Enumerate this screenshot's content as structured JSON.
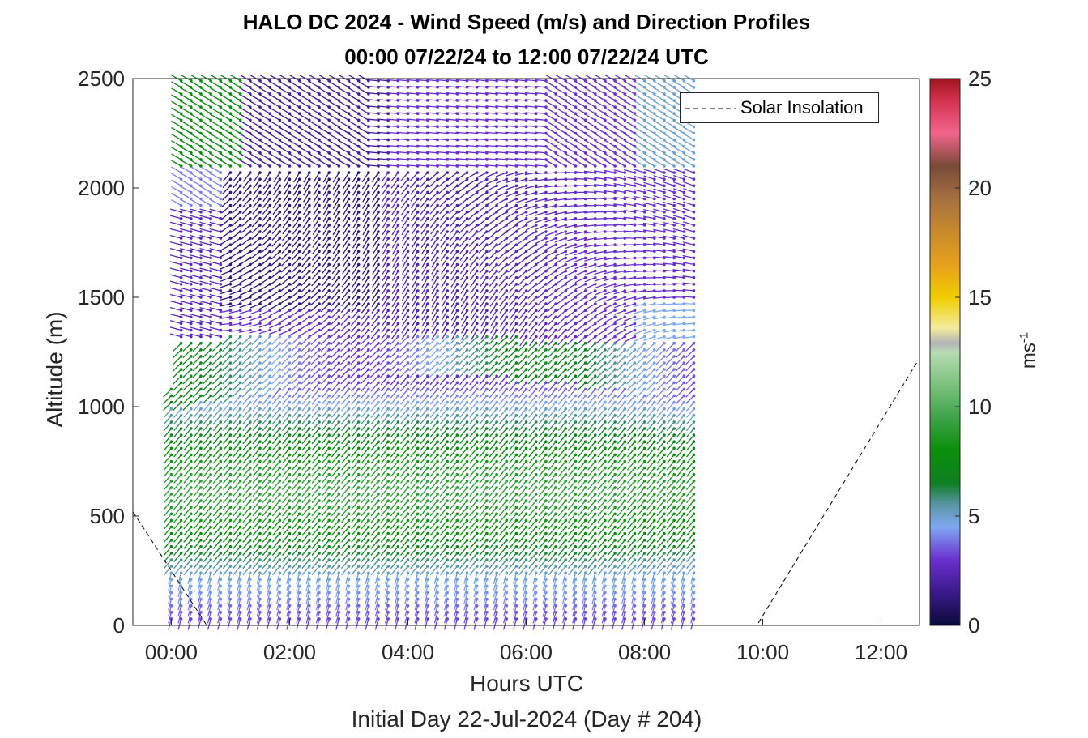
{
  "title_line1": "HALO DC 2024 - Wind Speed (m/s) and Direction Profiles",
  "title_line2": "00:00 07/22/24 to 12:00 07/22/24  UTC",
  "chart_data": {
    "type": "quiver",
    "xlabel": "Hours UTC",
    "xlabel2": "Initial Day 22-Jul-2024 (Day # 204)",
    "ylabel": "Altitude (m)",
    "xlim": [
      -0.65,
      12.65
    ],
    "ylim": [
      0,
      2500
    ],
    "xticks": [
      {
        "value": 0,
        "label": "00:00"
      },
      {
        "value": 2,
        "label": "02:00"
      },
      {
        "value": 4,
        "label": "04:00"
      },
      {
        "value": 6,
        "label": "06:00"
      },
      {
        "value": 8,
        "label": "08:00"
      },
      {
        "value": 10,
        "label": "10:00"
      },
      {
        "value": 12,
        "label": "12:00"
      }
    ],
    "yticks": [
      0,
      500,
      1000,
      1500,
      2000,
      2500
    ],
    "colorbar": {
      "label": "ms",
      "label_exponent": "-1",
      "range": [
        0,
        25
      ],
      "ticks": [
        0,
        5,
        10,
        15,
        20,
        25
      ],
      "stops": [
        {
          "v": 0,
          "c": "#0a0a3a"
        },
        {
          "v": 1.5,
          "c": "#3a1a8a"
        },
        {
          "v": 3,
          "c": "#6a2fd0"
        },
        {
          "v": 4.5,
          "c": "#7ea8f2"
        },
        {
          "v": 5.5,
          "c": "#5a96a8"
        },
        {
          "v": 6.5,
          "c": "#0f7f22"
        },
        {
          "v": 8,
          "c": "#0a8f0a"
        },
        {
          "v": 9.5,
          "c": "#3fa34a"
        },
        {
          "v": 11,
          "c": "#7cc27c"
        },
        {
          "v": 12.5,
          "c": "#b8dbb4"
        },
        {
          "v": 12.9,
          "c": "#b4b4b4"
        },
        {
          "v": 13.6,
          "c": "#f2ec9c"
        },
        {
          "v": 15,
          "c": "#f2cc00"
        },
        {
          "v": 16.5,
          "c": "#e6a01e"
        },
        {
          "v": 18,
          "c": "#c88a2c"
        },
        {
          "v": 19.5,
          "c": "#a67040"
        },
        {
          "v": 21,
          "c": "#7a4a38"
        },
        {
          "v": 22.5,
          "c": "#f2648c"
        },
        {
          "v": 24,
          "c": "#d43250"
        },
        {
          "v": 25,
          "c": "#a0141e"
        }
      ]
    },
    "legend": {
      "entries": [
        "Solar Insolation"
      ],
      "location": "top-right"
    },
    "solar_insolation": {
      "style": "dashed",
      "color": "#000000",
      "points": [
        {
          "hour": -0.65,
          "alt": 520
        },
        {
          "hour": 0.6,
          "alt": 0
        },
        {
          "hour": 9.9,
          "alt": 0
        },
        {
          "hour": 12.6,
          "alt": 1200
        }
      ]
    },
    "quiver": {
      "time_start_hour": 0,
      "time_step_hour": 0.1667,
      "n_profiles": 54,
      "alt_start_m": 30,
      "alt_step_m": 30,
      "regimes": [
        {
          "alt_range": [
            0,
            250
          ],
          "speed": 3.5,
          "dir_deg": 200
        },
        {
          "alt_range": [
            250,
            1000
          ],
          "speed": 9,
          "dir_deg": 225
        },
        {
          "alt_range": [
            1000,
            1300
          ],
          "speed": 6,
          "dir_deg": 230
        },
        {
          "alt_range": [
            1300,
            2100
          ],
          "speed": 2,
          "dir_deg": 270
        },
        {
          "alt_range": [
            2100,
            2500
          ],
          "speed": 4,
          "dir_deg": 300
        }
      ]
    }
  }
}
